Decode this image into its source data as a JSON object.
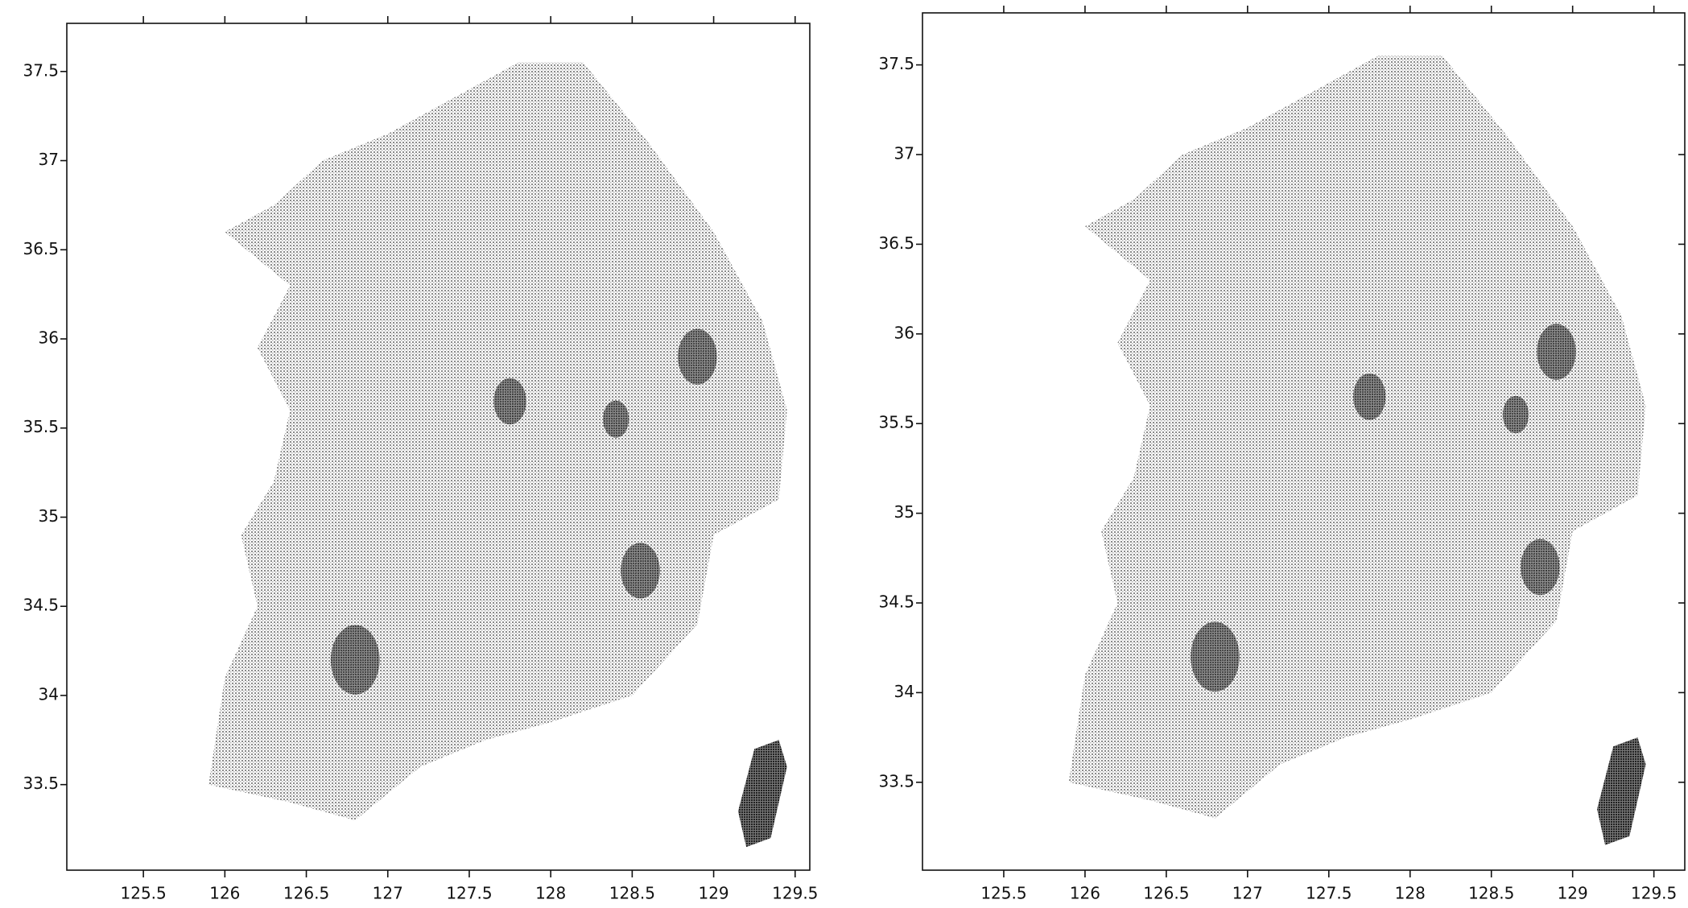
{
  "chart_data": [
    {
      "type": "map",
      "xlim": [
        125.03,
        129.59
      ],
      "ylim": [
        33.02,
        37.77
      ],
      "xticks": [
        125.5,
        126,
        126.5,
        127,
        127.5,
        128,
        128.5,
        129,
        129.5
      ],
      "yticks": [
        33.5,
        34,
        34.5,
        35,
        35.5,
        36,
        36.5,
        37,
        37.5
      ]
    },
    {
      "type": "map",
      "xlim": [
        125.0,
        129.69
      ],
      "ylim": [
        33.01,
        37.79
      ],
      "xticks": [
        125.5,
        126,
        126.5,
        127,
        127.5,
        128,
        128.5,
        129,
        129.5
      ],
      "yticks": [
        33.5,
        34,
        34.5,
        35,
        35.5,
        36,
        36.5,
        37,
        37.5
      ]
    }
  ]
}
